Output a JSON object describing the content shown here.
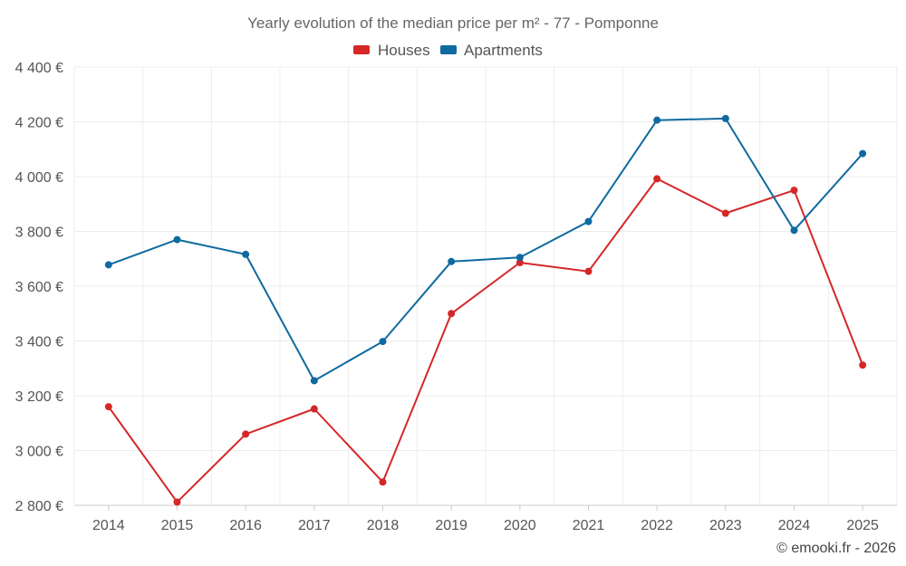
{
  "chart_data": {
    "type": "line",
    "title": "Yearly evolution of the median price per m² - 77 - Pomponne",
    "categories": [
      "2014",
      "2015",
      "2016",
      "2017",
      "2018",
      "2019",
      "2020",
      "2021",
      "2022",
      "2023",
      "2024",
      "2025"
    ],
    "series": [
      {
        "name": "Houses",
        "color": "#d62728",
        "values": [
          3160,
          2812,
          3060,
          3152,
          2885,
          3500,
          3686,
          3654,
          3992,
          3866,
          3950,
          3312
        ]
      },
      {
        "name": "Apartments",
        "color": "#0f6aa0",
        "values": [
          3678,
          3770,
          3716,
          3255,
          3398,
          3690,
          3705,
          3836,
          4206,
          4212,
          3804,
          4084
        ]
      }
    ],
    "ylim": [
      2800,
      4400
    ],
    "yticks": [
      2800,
      3000,
      3200,
      3400,
      3600,
      3800,
      4000,
      4200,
      4400
    ],
    "ytick_labels": [
      "2 800 €",
      "3 000 €",
      "3 200 €",
      "3 400 €",
      "3 600 €",
      "3 800 €",
      "4 000 €",
      "4 200 €",
      "4 400 €"
    ],
    "xlabel": "",
    "ylabel": "",
    "grid": true,
    "legend_position": "top-center"
  },
  "credit": "© emooki.fr - 2026"
}
